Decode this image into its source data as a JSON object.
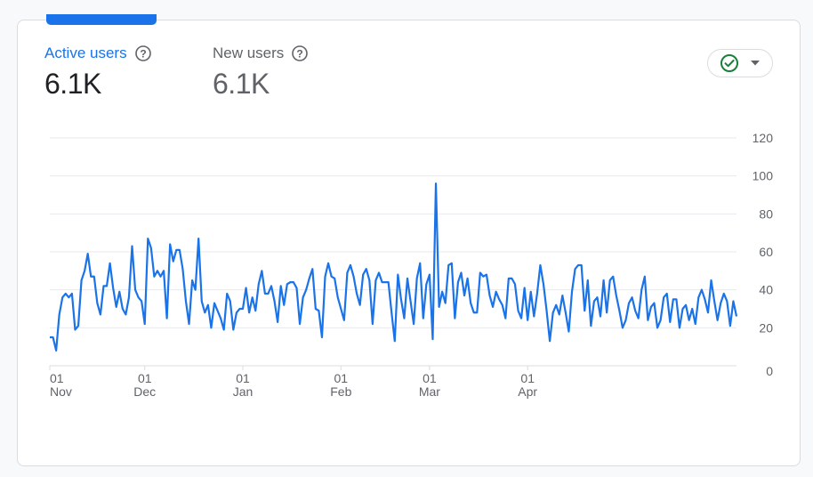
{
  "metrics": {
    "active": {
      "label": "Active users",
      "value": "6.1K"
    },
    "new": {
      "label": "New users",
      "value": "6.1K"
    }
  },
  "status_control": {
    "icon": "check-circle-icon",
    "dropdown_icon": "caret-down-icon",
    "color": "#188038"
  },
  "colors": {
    "accent": "#1a73e8",
    "grid": "#e8eaed",
    "text_muted": "#5f6368"
  },
  "chart_data": {
    "type": "line",
    "title": "",
    "xlabel": "",
    "ylabel": "",
    "ylim": [
      0,
      120
    ],
    "y_ticks": [
      "0",
      "20",
      "40",
      "60",
      "80",
      "100",
      "120"
    ],
    "x_ticks": [
      {
        "day": "01",
        "month": "Nov",
        "index": 0
      },
      {
        "day": "01",
        "month": "Dec",
        "index": 30
      },
      {
        "day": "01",
        "month": "Jan",
        "index": 61
      },
      {
        "day": "01",
        "month": "Feb",
        "index": 92
      },
      {
        "day": "01",
        "month": "Mar",
        "index": 120
      },
      {
        "day": "01",
        "month": "Apr",
        "index": 151
      }
    ],
    "grid": true,
    "y_axis_position": "right",
    "series": [
      {
        "name": "Active users",
        "values": [
          15,
          15,
          8,
          27,
          36,
          38,
          36,
          38,
          19,
          21,
          45,
          50,
          59,
          47,
          47,
          33,
          27,
          42,
          42,
          54,
          41,
          31,
          39,
          30,
          27,
          36,
          63,
          40,
          36,
          34,
          22,
          67,
          62,
          47,
          50,
          47,
          50,
          25,
          64,
          55,
          61,
          61,
          51,
          34,
          22,
          45,
          40,
          67,
          34,
          28,
          32,
          20,
          33,
          29,
          25,
          19,
          38,
          34,
          19,
          28,
          30,
          30,
          41,
          28,
          36,
          29,
          43,
          50,
          38,
          38,
          42,
          34,
          23,
          42,
          32,
          43,
          44,
          44,
          41,
          22,
          36,
          40,
          46,
          51,
          30,
          29,
          15,
          47,
          54,
          47,
          46,
          36,
          30,
          24,
          49,
          53,
          47,
          38,
          32,
          48,
          51,
          45,
          22,
          45,
          49,
          44,
          44,
          44,
          28,
          13,
          48,
          35,
          25,
          46,
          34,
          22,
          46,
          54,
          25,
          43,
          48,
          14,
          96,
          31,
          39,
          33,
          53,
          54,
          25,
          44,
          49,
          37,
          46,
          33,
          28,
          28,
          49,
          47,
          48,
          37,
          31,
          39,
          35,
          32,
          25,
          46,
          46,
          43,
          29,
          25,
          41,
          24,
          39,
          26,
          38,
          53,
          43,
          29,
          13,
          28,
          32,
          27,
          37,
          28,
          18,
          39,
          51,
          53,
          53,
          29,
          45,
          21,
          34,
          36,
          26,
          45,
          28,
          45,
          47,
          37,
          29,
          20,
          24,
          33,
          36,
          29,
          25,
          40,
          47,
          24,
          31,
          33,
          20,
          24,
          36,
          38,
          23,
          35,
          35,
          20,
          30,
          32,
          24,
          30,
          22,
          36,
          40,
          35,
          28,
          45,
          34,
          24,
          33,
          38,
          34,
          21,
          34,
          26
        ]
      }
    ]
  }
}
